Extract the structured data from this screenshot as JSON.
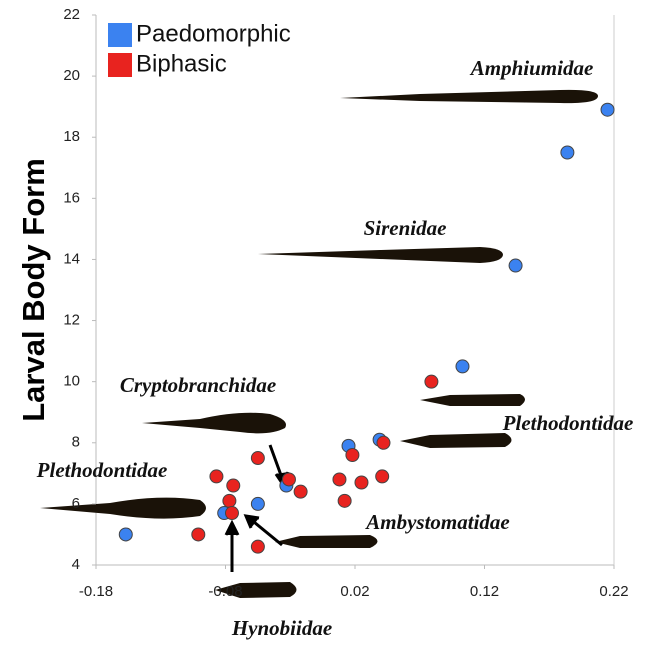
{
  "chart_data": {
    "type": "scatter",
    "y_label": "Larval Body Form",
    "xlim": [
      -0.18,
      0.22
    ],
    "xticks": [
      -0.18,
      -0.08,
      0.02,
      0.12,
      0.22
    ],
    "ylim": [
      4,
      22
    ],
    "yticks": [
      4,
      6,
      8,
      10,
      12,
      14,
      16,
      18,
      20,
      22
    ],
    "legend": "upper left",
    "series": [
      {
        "name": "Paedomorphic",
        "color": "#3b82f0",
        "x": [
          0.215,
          0.184,
          0.144,
          0.103,
          0.039,
          0.015,
          -0.033,
          -0.055,
          -0.081,
          -0.157
        ],
        "values": [
          18.9,
          17.5,
          13.8,
          10.5,
          8.1,
          7.9,
          6.6,
          6.0,
          5.7,
          5.0
        ]
      },
      {
        "name": "Biphasic",
        "color": "#e8231f",
        "x": [
          0.079,
          0.042,
          0.018,
          0.041,
          0.025,
          0.008,
          0.012,
          -0.022,
          -0.031,
          -0.055,
          -0.087,
          -0.074,
          -0.077,
          -0.075,
          -0.101,
          -0.055
        ],
        "values": [
          10.0,
          8.0,
          7.6,
          6.9,
          6.7,
          6.8,
          6.1,
          6.4,
          6.8,
          7.5,
          6.9,
          6.6,
          6.1,
          5.7,
          5.0,
          4.6
        ]
      }
    ],
    "annotations": [
      "Amphiumidae",
      "Sirenidae",
      "Cryptobranchidae",
      "Plethodontidae",
      "Plethodontidae",
      "Ambystomatidae",
      "Hynobiidae"
    ]
  }
}
